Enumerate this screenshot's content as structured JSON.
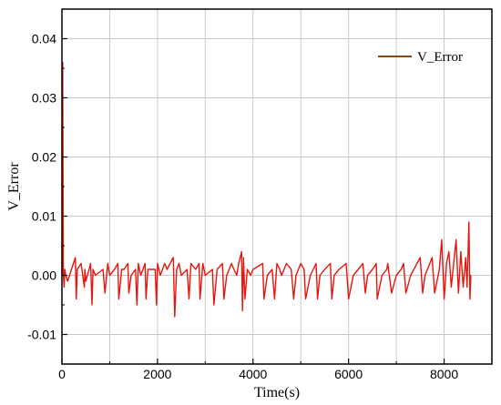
{
  "chart_data": {
    "type": "line",
    "title": "",
    "xlabel": "Time(s)",
    "ylabel": "V_Error",
    "xlim": [
      0,
      9000
    ],
    "ylim": [
      -0.015,
      0.045
    ],
    "xticks": [
      0,
      2000,
      4000,
      6000,
      8000
    ],
    "xtick_labels": [
      "0",
      "2000",
      "4000",
      "6000",
      "8000"
    ],
    "yticks": [
      -0.01,
      0.0,
      0.01,
      0.02,
      0.03,
      0.04
    ],
    "ytick_labels": [
      "-0.01",
      "0.00",
      "0.01",
      "0.02",
      "0.03",
      "0.04"
    ],
    "grid": true,
    "legend": {
      "position": "top-right",
      "entries": [
        "V_Error"
      ]
    },
    "colors": {
      "line": "#e8150d",
      "legend_line": "#8b4513"
    },
    "series": [
      {
        "name": "V_Error",
        "x": [
          0,
          15,
          30,
          45,
          60,
          80,
          120,
          200,
          280,
          300,
          320,
          400,
          470,
          480,
          500,
          600,
          630,
          650,
          700,
          860,
          900,
          960,
          1000,
          1100,
          1170,
          1190,
          1250,
          1300,
          1380,
          1400,
          1450,
          1540,
          1570,
          1600,
          1650,
          1740,
          1760,
          1800,
          1950,
          1980,
          2000,
          2060,
          2150,
          2200,
          2330,
          2360,
          2400,
          2450,
          2500,
          2620,
          2660,
          2700,
          2800,
          2870,
          2890,
          2950,
          3000,
          3150,
          3180,
          3250,
          3360,
          3390,
          3450,
          3550,
          3600,
          3660,
          3700,
          3760,
          3780,
          3800,
          3830,
          3880,
          3950,
          4000,
          4200,
          4230,
          4300,
          4400,
          4450,
          4500,
          4560,
          4600,
          4700,
          4800,
          4850,
          4900,
          5000,
          5070,
          5100,
          5200,
          5320,
          5350,
          5400,
          5500,
          5620,
          5650,
          5700,
          5800,
          5950,
          6000,
          6100,
          6200,
          6300,
          6350,
          6400,
          6500,
          6580,
          6600,
          6700,
          6800,
          6820,
          6900,
          7000,
          7100,
          7150,
          7200,
          7300,
          7500,
          7550,
          7600,
          7700,
          7750,
          7800,
          7900,
          7950,
          8000,
          8050,
          8100,
          8150,
          8200,
          8250,
          8300,
          8350,
          8400,
          8450,
          8480,
          8520,
          8540,
          8560
        ],
        "values": [
          0.0,
          0.036,
          0.0,
          -0.002,
          0.001,
          0.0,
          -0.001,
          0.001,
          0.003,
          -0.004,
          0.001,
          0.002,
          -0.002,
          0.001,
          -0.001,
          0.002,
          -0.005,
          0.001,
          0.0,
          0.001,
          -0.003,
          0.002,
          0.0,
          0.001,
          0.002,
          -0.004,
          0.001,
          0.001,
          0.002,
          -0.003,
          0.0,
          0.001,
          -0.005,
          0.002,
          0.0,
          0.002,
          -0.004,
          0.001,
          0.001,
          -0.005,
          0.002,
          0.0,
          0.002,
          0.001,
          0.003,
          -0.007,
          0.001,
          0.002,
          0.0,
          0.001,
          -0.004,
          0.002,
          0.001,
          0.002,
          -0.004,
          0.002,
          0.0,
          0.001,
          -0.005,
          0.001,
          0.002,
          -0.004,
          0.0,
          0.002,
          0.001,
          0.0,
          0.002,
          0.004,
          -0.006,
          0.003,
          -0.004,
          0.001,
          0.0,
          0.001,
          0.002,
          -0.004,
          0.0,
          0.001,
          -0.004,
          0.002,
          0.001,
          0.0,
          0.002,
          0.001,
          -0.004,
          0.0,
          0.002,
          0.001,
          -0.004,
          0.0,
          0.002,
          -0.004,
          0.0,
          0.001,
          0.002,
          -0.004,
          0.0,
          0.001,
          0.002,
          -0.004,
          0.0,
          0.001,
          0.002,
          -0.003,
          0.0,
          0.001,
          0.002,
          -0.004,
          0.0,
          0.001,
          0.002,
          -0.003,
          0.0,
          0.001,
          0.002,
          -0.003,
          0.0,
          0.003,
          -0.003,
          0.0,
          0.002,
          0.003,
          -0.003,
          0.001,
          0.006,
          -0.004,
          0.002,
          0.004,
          -0.002,
          0.002,
          0.006,
          -0.003,
          0.004,
          -0.002,
          0.003,
          -0.002,
          0.009,
          -0.004,
          0.0
        ]
      }
    ]
  }
}
